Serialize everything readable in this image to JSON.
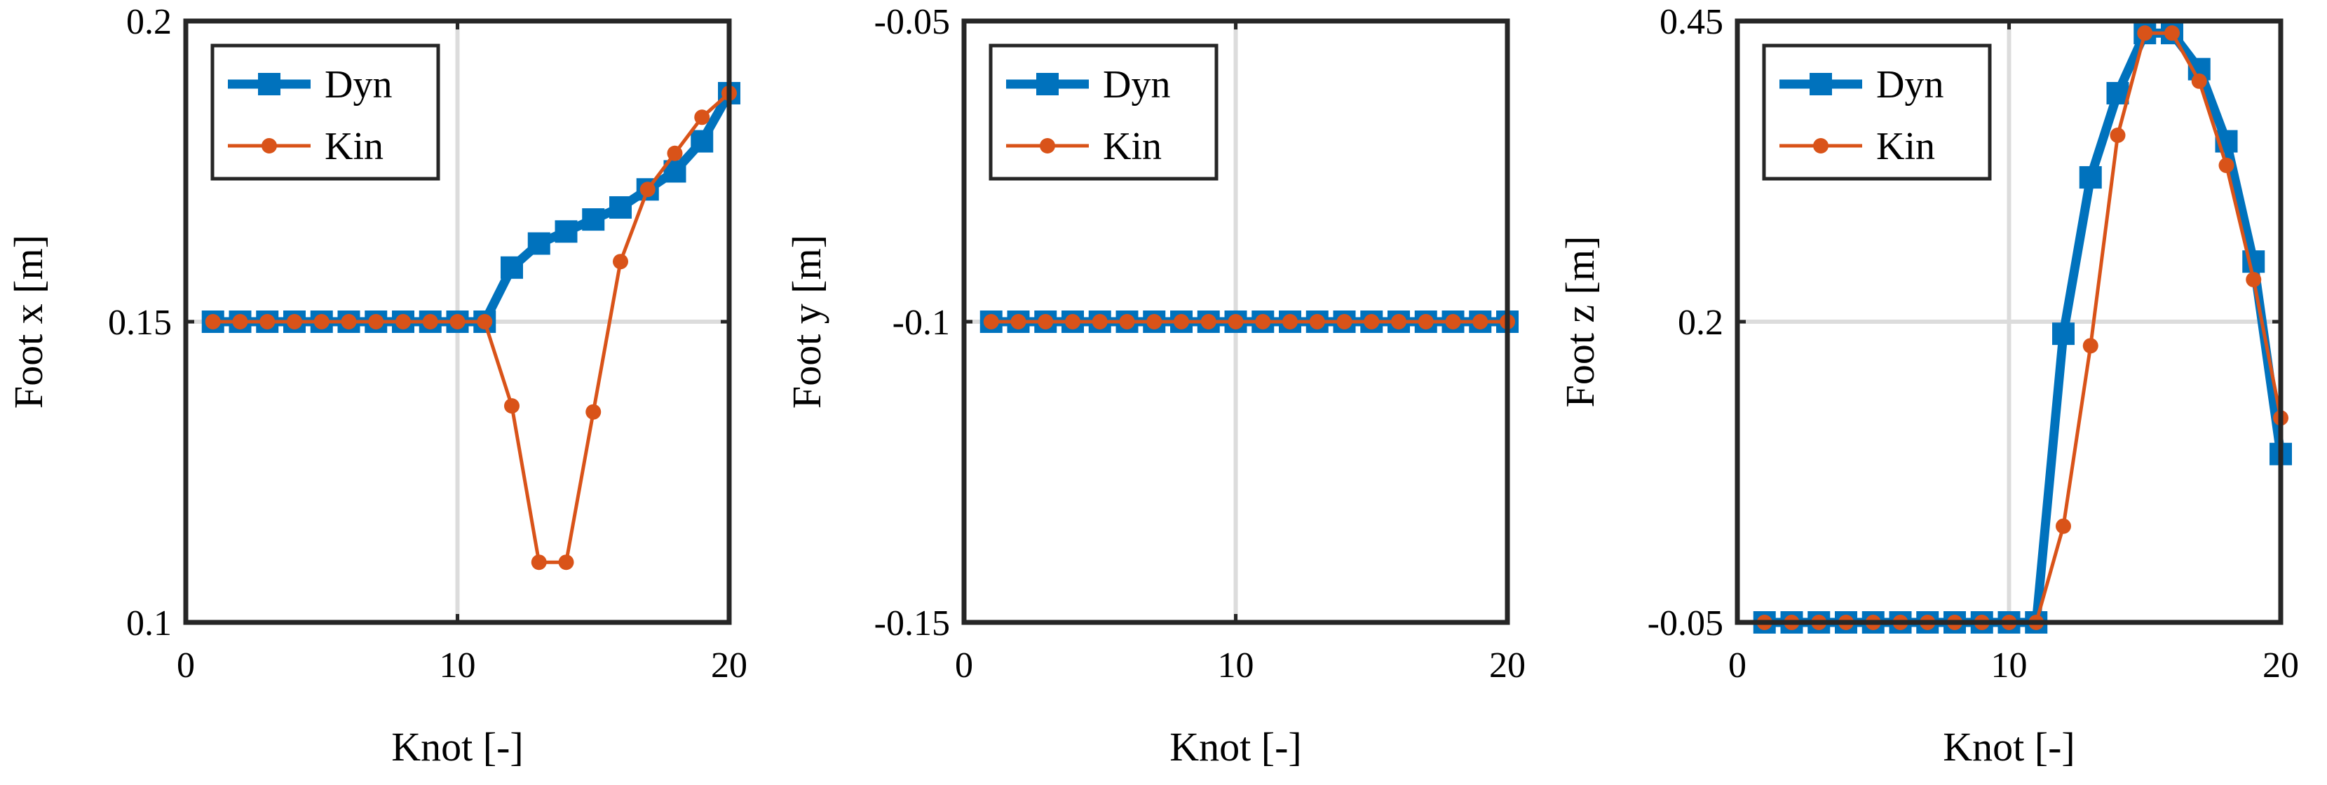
{
  "colors": {
    "dyn": "#0072BD",
    "kin": "#D95319",
    "grid": "#dcdcdc",
    "axis": "#262626"
  },
  "chart_data": [
    {
      "type": "line",
      "title": "",
      "xlabel": "Knot [-]",
      "ylabel": "Foot x [m]",
      "xlim": [
        0,
        20
      ],
      "ylim": [
        0.1,
        0.2
      ],
      "xticks": [
        0,
        10,
        20
      ],
      "xtick_labels": [
        "0",
        "10",
        "20"
      ],
      "yticks": [
        0.1,
        0.15,
        0.2
      ],
      "ytick_labels": [
        "0.1",
        "0.15",
        "0.2"
      ],
      "grid": true,
      "legend_position": "top-left",
      "x": [
        1,
        2,
        3,
        4,
        5,
        6,
        7,
        8,
        9,
        10,
        11,
        12,
        13,
        14,
        15,
        16,
        17,
        18,
        19,
        20
      ],
      "series": [
        {
          "name": "Dyn",
          "marker": "square",
          "values": [
            0.15,
            0.15,
            0.15,
            0.15,
            0.15,
            0.15,
            0.15,
            0.15,
            0.15,
            0.15,
            0.15,
            0.159,
            0.163,
            0.165,
            0.167,
            0.169,
            0.172,
            0.175,
            0.18,
            0.188
          ]
        },
        {
          "name": "Kin",
          "marker": "circle",
          "values": [
            0.15,
            0.15,
            0.15,
            0.15,
            0.15,
            0.15,
            0.15,
            0.15,
            0.15,
            0.15,
            0.15,
            0.136,
            0.11,
            0.11,
            0.135,
            0.16,
            0.172,
            0.178,
            0.184,
            0.188
          ]
        }
      ]
    },
    {
      "type": "line",
      "title": "",
      "xlabel": "Knot [-]",
      "ylabel": "Foot y [m]",
      "xlim": [
        0,
        20
      ],
      "ylim": [
        -0.15,
        -0.05
      ],
      "xticks": [
        0,
        10,
        20
      ],
      "xtick_labels": [
        "0",
        "10",
        "20"
      ],
      "yticks": [
        -0.15,
        -0.1,
        -0.05
      ],
      "ytick_labels": [
        "-0.15",
        "-0.1",
        "-0.05"
      ],
      "grid": true,
      "legend_position": "top-left",
      "x": [
        1,
        2,
        3,
        4,
        5,
        6,
        7,
        8,
        9,
        10,
        11,
        12,
        13,
        14,
        15,
        16,
        17,
        18,
        19,
        20
      ],
      "series": [
        {
          "name": "Dyn",
          "marker": "square",
          "values": [
            -0.1,
            -0.1,
            -0.1,
            -0.1,
            -0.1,
            -0.1,
            -0.1,
            -0.1,
            -0.1,
            -0.1,
            -0.1,
            -0.1,
            -0.1,
            -0.1,
            -0.1,
            -0.1,
            -0.1,
            -0.1,
            -0.1,
            -0.1
          ]
        },
        {
          "name": "Kin",
          "marker": "circle",
          "values": [
            -0.1,
            -0.1,
            -0.1,
            -0.1,
            -0.1,
            -0.1,
            -0.1,
            -0.1,
            -0.1,
            -0.1,
            -0.1,
            -0.1,
            -0.1,
            -0.1,
            -0.1,
            -0.1,
            -0.1,
            -0.1,
            -0.1,
            -0.1
          ]
        }
      ]
    },
    {
      "type": "line",
      "title": "",
      "xlabel": "Knot [-]",
      "ylabel": "Foot z [m]",
      "xlim": [
        0,
        20
      ],
      "ylim": [
        -0.05,
        0.45
      ],
      "xticks": [
        0,
        10,
        20
      ],
      "xtick_labels": [
        "0",
        "10",
        "20"
      ],
      "yticks": [
        -0.05,
        0.2,
        0.45
      ],
      "ytick_labels": [
        "-0.05",
        "0.2",
        "0.45"
      ],
      "grid": true,
      "legend_position": "top-left",
      "x": [
        1,
        2,
        3,
        4,
        5,
        6,
        7,
        8,
        9,
        10,
        11,
        12,
        13,
        14,
        15,
        16,
        17,
        18,
        19,
        20
      ],
      "series": [
        {
          "name": "Dyn",
          "marker": "square",
          "values": [
            -0.05,
            -0.05,
            -0.05,
            -0.05,
            -0.05,
            -0.05,
            -0.05,
            -0.05,
            -0.05,
            -0.05,
            -0.05,
            0.19,
            0.32,
            0.39,
            0.44,
            0.44,
            0.41,
            0.35,
            0.25,
            0.09
          ]
        },
        {
          "name": "Kin",
          "marker": "circle",
          "values": [
            -0.05,
            -0.05,
            -0.05,
            -0.05,
            -0.05,
            -0.05,
            -0.05,
            -0.05,
            -0.05,
            -0.05,
            -0.05,
            0.03,
            0.18,
            0.355,
            0.44,
            0.44,
            0.4,
            0.33,
            0.235,
            0.12
          ]
        }
      ]
    }
  ]
}
